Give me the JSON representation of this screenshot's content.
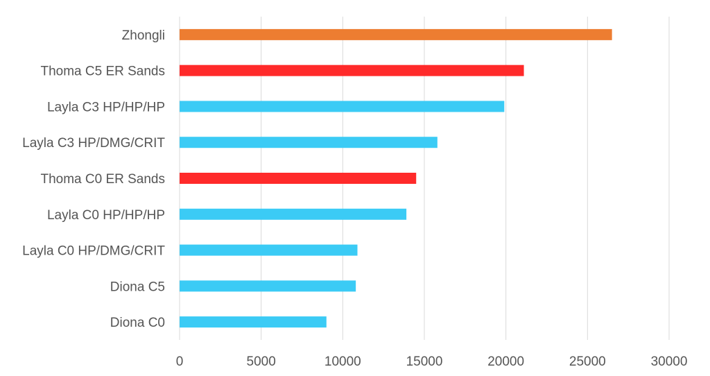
{
  "chart_data": {
    "type": "bar",
    "orientation": "horizontal",
    "title": "",
    "xlabel": "",
    "ylabel": "",
    "xlim": [
      0,
      30000
    ],
    "ticks": [
      "0",
      "5000",
      "10000",
      "15000",
      "20000",
      "25000",
      "30000"
    ],
    "tick_values": [
      0,
      5000,
      10000,
      15000,
      20000,
      25000,
      30000
    ],
    "grid": "vertical",
    "legend": "none",
    "categories": [
      "Zhongli",
      "Thoma C5 ER Sands",
      "Layla C3 HP/HP/HP",
      "Layla C3 HP/DMG/CRIT",
      "Thoma C0 ER Sands",
      "Layla C0 HP/HP/HP",
      "Layla C0 HP/DMG/CRIT",
      "Diona C5",
      "Diona C0"
    ],
    "values": [
      26500,
      21100,
      19900,
      15800,
      14500,
      13900,
      10900,
      10800,
      9000
    ],
    "colors": [
      "#ED7D31",
      "#FF2A2A",
      "#3BCBF5",
      "#3BCBF5",
      "#FF2A2A",
      "#3BCBF5",
      "#3BCBF5",
      "#3BCBF5",
      "#3BCBF5"
    ]
  }
}
